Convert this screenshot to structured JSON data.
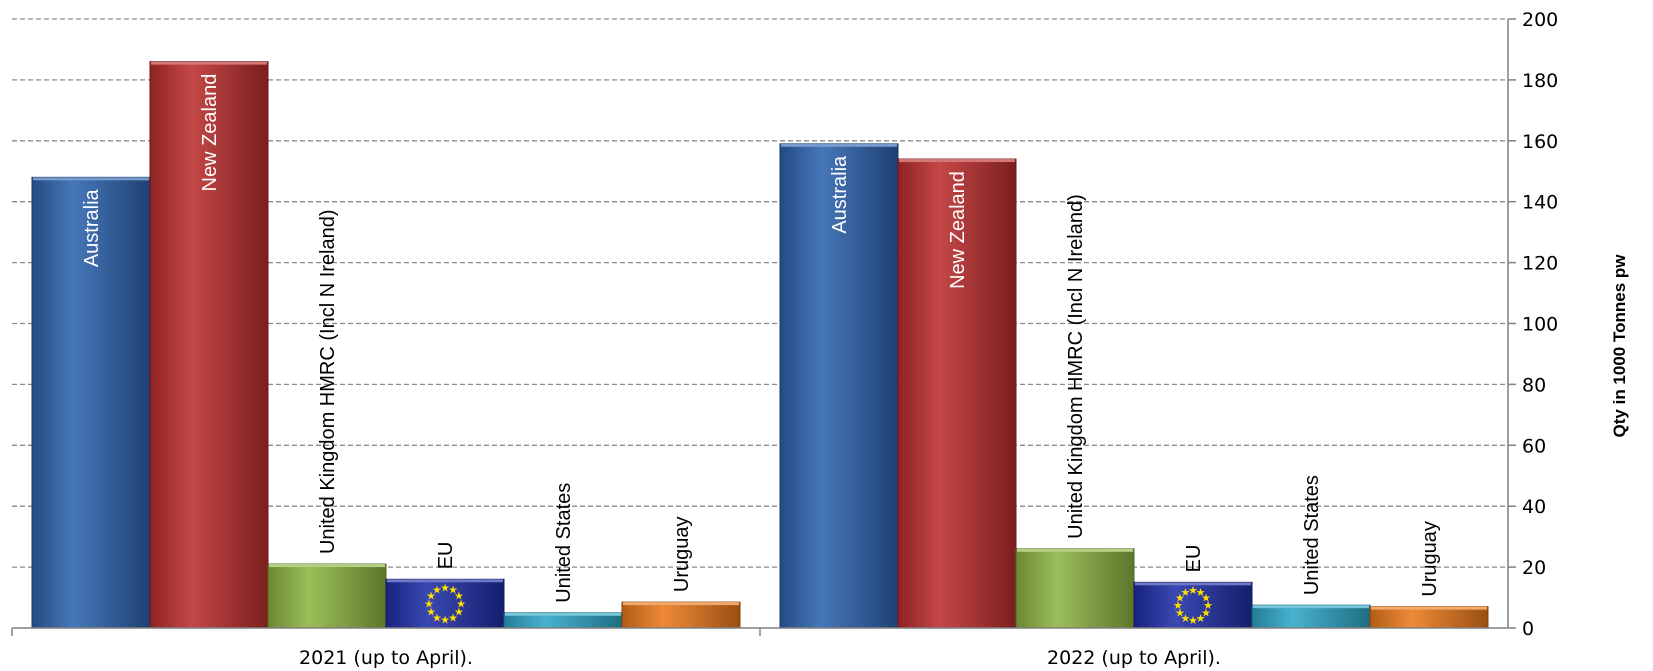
{
  "chart_data": {
    "type": "bar",
    "title": "",
    "xlabel": "",
    "ylabel": "Qty in 1000 Tonnes pw",
    "ylim": [
      0,
      200
    ],
    "y_ticks": [
      0,
      20,
      40,
      60,
      80,
      100,
      120,
      140,
      160,
      180,
      200
    ],
    "y_axis_side": "right",
    "grid": "horizontal dashed",
    "legend": "none (series names printed vertically on bars)",
    "categories": [
      "2021 (up to April).",
      "2022 (up to April)."
    ],
    "series": [
      {
        "name": "Australia",
        "color": "#2e64b0",
        "values": [
          148,
          159
        ]
      },
      {
        "name": "New Zealand",
        "color": "#bd2e2e",
        "values": [
          186,
          154
        ]
      },
      {
        "name": "United Kingdom HMRC (Incl N Ireland)",
        "color": "#8db542",
        "values": [
          21,
          26
        ]
      },
      {
        "name": "EU",
        "color": "#1f2fa8",
        "values": [
          16,
          15
        ]
      },
      {
        "name": "United States",
        "color": "#2fa8c8",
        "values": [
          5,
          7.5
        ]
      },
      {
        "name": "Uruguay",
        "color": "#ec7a1c",
        "values": [
          8.5,
          7
        ]
      }
    ]
  }
}
